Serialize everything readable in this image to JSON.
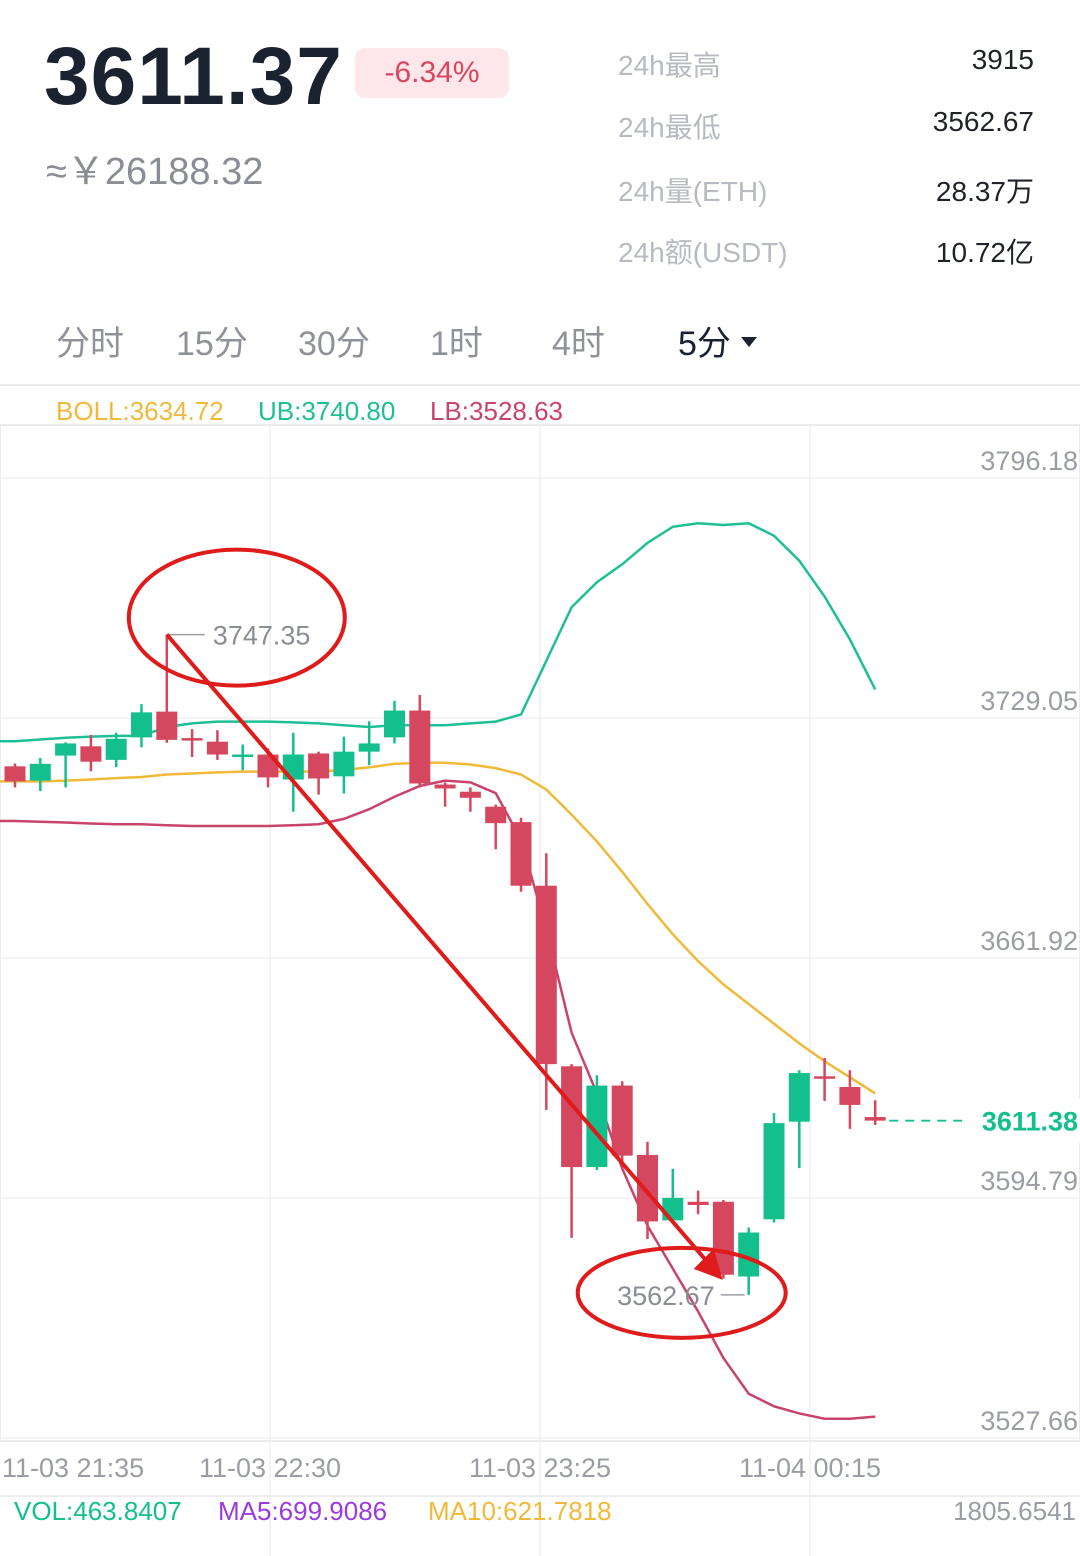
{
  "header": {
    "price": "3611.37",
    "change": "-6.34%",
    "approx": "≈￥26188.32",
    "stats": [
      {
        "label": "24h最高",
        "value": "3915"
      },
      {
        "label": "24h最低",
        "value": "3562.67"
      },
      {
        "label": "24h量(ETH)",
        "value": "28.37万"
      },
      {
        "label": "24h额(USDT)",
        "value": "10.72亿"
      }
    ]
  },
  "tabs": [
    {
      "label": "分时"
    },
    {
      "label": "15分"
    },
    {
      "label": "30分"
    },
    {
      "label": "1时"
    },
    {
      "label": "4时"
    },
    {
      "label": "5分"
    }
  ],
  "indicators": {
    "boll": "BOLL:3634.72",
    "ub": "UB:3740.80",
    "lb": "LB:3528.63",
    "vol": "VOL:463.8407",
    "ma5": "MA5:699.9086",
    "ma10": "MA10:621.7818",
    "vol_right": "1805.6541"
  },
  "colors": {
    "up": "#13c08d",
    "down": "#d4475f",
    "boll": "#f0b93a",
    "ub": "#1fbf95",
    "lb": "#c8446a",
    "annotation": "#e01b1b",
    "ma5": "#9b3ae0"
  },
  "chart_data": {
    "type": "candlestick",
    "y_ticks": [
      "3796.18",
      "3729.05",
      "3661.92",
      "3594.79",
      "3527.66"
    ],
    "y_tick_values": [
      3796.18,
      3729.05,
      3661.92,
      3594.79,
      3527.66
    ],
    "x_ticks": [
      "11-03 21:35",
      "11-03 22:30",
      "11-03 23:25",
      "11-04 00:15"
    ],
    "ylim": [
      3527.66,
      3796.18
    ],
    "current_price_label": "3611.38",
    "current_price": 3611.38,
    "high_label": "3747.35",
    "high": 3747.35,
    "low_label": "3562.67",
    "low": 3562.67,
    "candles": [
      {
        "o": 3710.5,
        "c": 3706.3,
        "h": 3711.3,
        "l": 3704.6
      },
      {
        "o": 3706.5,
        "c": 3711.2,
        "h": 3712.8,
        "l": 3703.6
      },
      {
        "o": 3713.5,
        "c": 3716.9,
        "h": 3717.2,
        "l": 3704.6
      },
      {
        "o": 3716.1,
        "c": 3711.8,
        "h": 3719.3,
        "l": 3709.1
      },
      {
        "o": 3712.3,
        "c": 3718.2,
        "h": 3719.9,
        "l": 3710.3
      },
      {
        "o": 3718.6,
        "c": 3725.6,
        "h": 3727.9,
        "l": 3715.8
      },
      {
        "o": 3725.8,
        "c": 3717.9,
        "h": 3747.35,
        "l": 3717.1
      },
      {
        "o": 3718.4,
        "c": 3717.7,
        "h": 3720.9,
        "l": 3713.1
      },
      {
        "o": 3717.4,
        "c": 3713.8,
        "h": 3720.6,
        "l": 3712.3
      },
      {
        "o": 3713.8,
        "c": 3713.8,
        "h": 3716.6,
        "l": 3709.4
      },
      {
        "o": 3713.8,
        "c": 3707.4,
        "h": 3715.5,
        "l": 3704.6
      },
      {
        "o": 3706.8,
        "c": 3713.8,
        "h": 3719.9,
        "l": 3697.8
      },
      {
        "o": 3714.1,
        "c": 3707.1,
        "h": 3714.6,
        "l": 3702.6
      },
      {
        "o": 3707.7,
        "c": 3714.6,
        "h": 3718.8,
        "l": 3702.9
      },
      {
        "o": 3714.6,
        "c": 3716.9,
        "h": 3723.1,
        "l": 3710.8
      },
      {
        "o": 3718.6,
        "c": 3726.1,
        "h": 3728.8,
        "l": 3716.9
      },
      {
        "o": 3726.1,
        "c": 3705.7,
        "h": 3730.5,
        "l": 3704.6
      },
      {
        "o": 3705.4,
        "c": 3704.3,
        "h": 3706.0,
        "l": 3699.2
      },
      {
        "o": 3703.4,
        "c": 3701.7,
        "h": 3704.6,
        "l": 3697.8
      },
      {
        "o": 3699.2,
        "c": 3694.6,
        "h": 3699.8,
        "l": 3687.3
      },
      {
        "o": 3694.9,
        "c": 3677.1,
        "h": 3696.1,
        "l": 3675.4
      },
      {
        "o": 3677.1,
        "c": 3627.2,
        "h": 3686.2,
        "l": 3614.4
      },
      {
        "o": 3626.6,
        "c": 3598.4,
        "h": 3627.2,
        "l": 3578.6
      },
      {
        "o": 3598.4,
        "c": 3621.2,
        "h": 3624.1,
        "l": 3597.6
      },
      {
        "o": 3621.2,
        "c": 3601.6,
        "h": 3622.4,
        "l": 3597.9
      },
      {
        "o": 3601.8,
        "c": 3583.2,
        "h": 3605.5,
        "l": 3578.3
      },
      {
        "o": 3583.5,
        "c": 3589.8,
        "h": 3597.9,
        "l": 3583.5
      },
      {
        "o": 3588.7,
        "c": 3587.8,
        "h": 3591.8,
        "l": 3585.2
      },
      {
        "o": 3588.7,
        "c": 3568.3,
        "h": 3589.2,
        "l": 3567.2
      },
      {
        "o": 3567.8,
        "c": 3580.1,
        "h": 3581.5,
        "l": 3562.67
      },
      {
        "o": 3583.8,
        "c": 3610.7,
        "h": 3613.5,
        "l": 3582.9
      },
      {
        "o": 3611.1,
        "c": 3624.7,
        "h": 3625.5,
        "l": 3598.1
      },
      {
        "o": 3623.8,
        "c": 3623.3,
        "h": 3628.9,
        "l": 3616.9
      },
      {
        "o": 3620.8,
        "c": 3615.8,
        "h": 3625.5,
        "l": 3609.1
      },
      {
        "o": 3612.4,
        "c": 3611.4,
        "h": 3617.1,
        "l": 3610.2
      }
    ],
    "series": [
      {
        "key": "ub",
        "values": [
          3717.5,
          3718.0,
          3718.5,
          3718.8,
          3719.0,
          3719.0,
          3721.5,
          3722.5,
          3723.0,
          3723.0,
          3723.0,
          3722.8,
          3722.5,
          3722.0,
          3721.5,
          3722.0,
          3722.0,
          3722.0,
          3722.5,
          3723.0,
          3725.0,
          3740.0,
          3755.0,
          3762.0,
          3767.0,
          3773.0,
          3777.5,
          3778.5,
          3778.0,
          3778.5,
          3775.0,
          3768.0,
          3758.0,
          3746.0,
          3732.0
        ]
      },
      {
        "key": "boll",
        "values": [
          3706.3,
          3706.3,
          3706.5,
          3706.8,
          3707.2,
          3707.5,
          3708.2,
          3708.5,
          3708.8,
          3709.0,
          3709.0,
          3709.0,
          3709.0,
          3709.5,
          3710.2,
          3711.2,
          3711.5,
          3711.5,
          3711.0,
          3710.0,
          3708.2,
          3704.0,
          3697.0,
          3689.5,
          3681.0,
          3672.0,
          3663.5,
          3656.0,
          3649.5,
          3644.0,
          3638.5,
          3633.0,
          3628.0,
          3623.5,
          3619.0
        ]
      },
      {
        "key": "lb",
        "values": [
          3695.2,
          3695.0,
          3694.8,
          3694.5,
          3694.3,
          3694.3,
          3694.0,
          3693.8,
          3693.8,
          3693.8,
          3693.8,
          3694.0,
          3694.3,
          3695.8,
          3698.5,
          3702.0,
          3705.0,
          3706.5,
          3706.0,
          3703.0,
          3690.0,
          3665.0,
          3636.0,
          3619.0,
          3598.0,
          3582.0,
          3570.0,
          3558.0,
          3545.0,
          3535.0,
          3531.5,
          3529.5,
          3528.0,
          3528.0,
          3528.6
        ]
      }
    ]
  }
}
